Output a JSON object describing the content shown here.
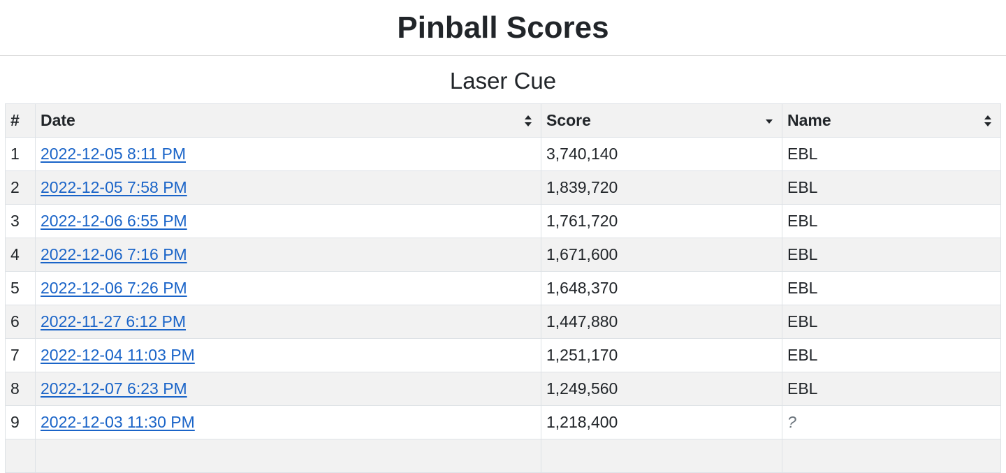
{
  "header": {
    "title": "Pinball Scores"
  },
  "machine": {
    "name": "Laser Cue"
  },
  "table": {
    "columns": [
      "#",
      "Date",
      "Score",
      "Name"
    ],
    "rows": [
      {
        "rank": "1",
        "date": "2022-12-05 8:11 PM",
        "score": "3,740,140",
        "name": "EBL"
      },
      {
        "rank": "2",
        "date": "2022-12-05 7:58 PM",
        "score": "1,839,720",
        "name": "EBL"
      },
      {
        "rank": "3",
        "date": "2022-12-06 6:55 PM",
        "score": "1,761,720",
        "name": "EBL"
      },
      {
        "rank": "4",
        "date": "2022-12-06 7:16 PM",
        "score": "1,671,600",
        "name": "EBL"
      },
      {
        "rank": "5",
        "date": "2022-12-06 7:26 PM",
        "score": "1,648,370",
        "name": "EBL"
      },
      {
        "rank": "6",
        "date": "2022-11-27 6:12 PM",
        "score": "1,447,880",
        "name": "EBL"
      },
      {
        "rank": "7",
        "date": "2022-12-04 11:03 PM",
        "score": "1,251,170",
        "name": "EBL"
      },
      {
        "rank": "8",
        "date": "2022-12-07 6:23 PM",
        "score": "1,249,560",
        "name": "EBL"
      },
      {
        "rank": "9",
        "date": "2022-12-03 11:30 PM",
        "score": "1,218,400",
        "name": "?"
      },
      {
        "rank": "",
        "date": "",
        "score": "",
        "name": ""
      }
    ],
    "sort": {
      "column": "Score",
      "direction": "descending"
    },
    "icons": {
      "date": "sort-both-icon",
      "score": "sort-desc-icon",
      "name": "sort-both-icon"
    }
  },
  "colors": {
    "link": "#1a64c8",
    "header_bg": "#f2f2f2",
    "stripe_bg": "#f2f2f2",
    "border": "#dee2e6",
    "unknown_name": "#6c757d"
  }
}
